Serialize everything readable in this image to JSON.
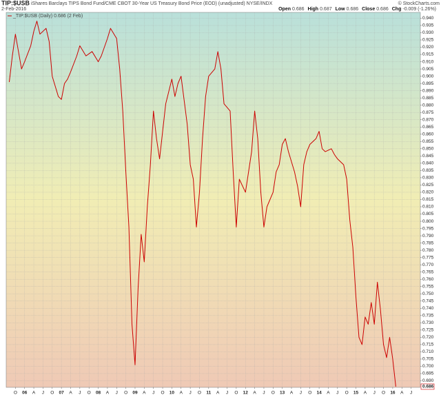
{
  "chart_data": {
    "type": "line",
    "title": "TIP:$USB",
    "subtitle": "iShares Barclays TIPS Bond Fund/CME CBOT 30-Year US Treasury Bond Price (EOD) (unadjusted) NYSE/INDX",
    "credit": "© StockCharts.com",
    "date": "2-Feb-2016",
    "ohlc": [
      {
        "label": "Open",
        "value": 0.686
      },
      {
        "label": "High",
        "value": 0.687
      },
      {
        "label": "Low",
        "value": 0.686
      },
      {
        "label": "Close",
        "value": 0.686
      },
      {
        "label": "Chg",
        "value": "-0.009 (-1.26%)"
      }
    ],
    "last_label": "0.686",
    "grid": true,
    "x": [
      "2005-08",
      "2005-09",
      "2005-10",
      "2005-12",
      "2006-01",
      "2006-03",
      "2006-04",
      "2006-05",
      "2006-06",
      "2006-08",
      "2006-09",
      "2006-10",
      "2006-12",
      "2007-01",
      "2007-02",
      "2007-03",
      "2007-04",
      "2007-06",
      "2007-07",
      "2007-09",
      "2007-11",
      "2008-01",
      "2008-02",
      "2008-04",
      "2008-05",
      "2008-07",
      "2008-08",
      "2008-09",
      "2008-10",
      "2008-11",
      "2008-12",
      "2009-01",
      "2009-02",
      "2009-03",
      "2009-04",
      "2009-05",
      "2009-06",
      "2009-07",
      "2009-08",
      "2009-09",
      "2009-10",
      "2009-11",
      "2010-01",
      "2010-02",
      "2010-03",
      "2010-04",
      "2010-06",
      "2010-07",
      "2010-08",
      "2010-09",
      "2010-10",
      "2010-11",
      "2010-12",
      "2011-01",
      "2011-03",
      "2011-04",
      "2011-05",
      "2011-06",
      "2011-08",
      "2011-09",
      "2011-10",
      "2011-11",
      "2012-01",
      "2012-02",
      "2012-03",
      "2012-04",
      "2012-05",
      "2012-06",
      "2012-07",
      "2012-08",
      "2012-10",
      "2012-11",
      "2012-12",
      "2013-01",
      "2013-02",
      "2013-03",
      "2013-05",
      "2013-06",
      "2013-07",
      "2013-08",
      "2013-09",
      "2013-10",
      "2013-12",
      "2014-01",
      "2014-02",
      "2014-03",
      "2014-05",
      "2014-06",
      "2014-07",
      "2014-09",
      "2014-10",
      "2014-11",
      "2014-12",
      "2015-01",
      "2015-02",
      "2015-03",
      "2015-04",
      "2015-05",
      "2015-06",
      "2015-07",
      "2015-08",
      "2015-09",
      "2015-10",
      "2015-11",
      "2015-12",
      "2016-01",
      "2016-02"
    ],
    "series": [
      {
        "name": "_TIP:$USB (Daily) 0.686 (2 Feb)",
        "color": "#cc0000",
        "values": [
          0.896,
          0.914,
          0.929,
          0.905,
          0.91,
          0.921,
          0.931,
          0.938,
          0.929,
          0.933,
          0.924,
          0.9,
          0.886,
          0.884,
          0.895,
          0.898,
          0.903,
          0.914,
          0.921,
          0.914,
          0.917,
          0.91,
          0.914,
          0.926,
          0.933,
          0.926,
          0.905,
          0.876,
          0.834,
          0.796,
          0.729,
          0.701,
          0.754,
          0.791,
          0.772,
          0.81,
          0.839,
          0.876,
          0.857,
          0.843,
          0.862,
          0.881,
          0.898,
          0.886,
          0.895,
          0.9,
          0.867,
          0.839,
          0.829,
          0.796,
          0.82,
          0.857,
          0.886,
          0.9,
          0.905,
          0.917,
          0.905,
          0.881,
          0.876,
          0.834,
          0.796,
          0.829,
          0.82,
          0.834,
          0.848,
          0.876,
          0.857,
          0.82,
          0.796,
          0.81,
          0.82,
          0.834,
          0.839,
          0.853,
          0.857,
          0.848,
          0.834,
          0.824,
          0.81,
          0.839,
          0.848,
          0.853,
          0.857,
          0.862,
          0.85,
          0.848,
          0.85,
          0.846,
          0.843,
          0.839,
          0.829,
          0.801,
          0.782,
          0.748,
          0.72,
          0.715,
          0.734,
          0.729,
          0.744,
          0.729,
          0.758,
          0.739,
          0.715,
          0.706,
          0.72,
          0.705,
          0.686
        ]
      }
    ],
    "xlim": [
      "2005-07",
      "2016-10"
    ],
    "xticks": [
      {
        "value": "2005-10",
        "label": "O"
      },
      {
        "value": "2006-01",
        "label": "06"
      },
      {
        "value": "2006-04",
        "label": "A"
      },
      {
        "value": "2006-07",
        "label": "J"
      },
      {
        "value": "2006-10",
        "label": "O"
      },
      {
        "value": "2007-01",
        "label": "07"
      },
      {
        "value": "2007-04",
        "label": "A"
      },
      {
        "value": "2007-07",
        "label": "J"
      },
      {
        "value": "2007-10",
        "label": "O"
      },
      {
        "value": "2008-01",
        "label": "08"
      },
      {
        "value": "2008-04",
        "label": "A"
      },
      {
        "value": "2008-07",
        "label": "J"
      },
      {
        "value": "2008-10",
        "label": "O"
      },
      {
        "value": "2009-01",
        "label": "09"
      },
      {
        "value": "2009-04",
        "label": "A"
      },
      {
        "value": "2009-07",
        "label": "J"
      },
      {
        "value": "2009-10",
        "label": "O"
      },
      {
        "value": "2010-01",
        "label": "10"
      },
      {
        "value": "2010-04",
        "label": "A"
      },
      {
        "value": "2010-07",
        "label": "J"
      },
      {
        "value": "2010-10",
        "label": "O"
      },
      {
        "value": "2011-01",
        "label": "11"
      },
      {
        "value": "2011-04",
        "label": "A"
      },
      {
        "value": "2011-07",
        "label": "J"
      },
      {
        "value": "2011-10",
        "label": "O"
      },
      {
        "value": "2012-01",
        "label": "12"
      },
      {
        "value": "2012-04",
        "label": "A"
      },
      {
        "value": "2012-07",
        "label": "J"
      },
      {
        "value": "2012-10",
        "label": "O"
      },
      {
        "value": "2013-01",
        "label": "13"
      },
      {
        "value": "2013-04",
        "label": "A"
      },
      {
        "value": "2013-07",
        "label": "J"
      },
      {
        "value": "2013-10",
        "label": "O"
      },
      {
        "value": "2014-01",
        "label": "14"
      },
      {
        "value": "2014-04",
        "label": "A"
      },
      {
        "value": "2014-07",
        "label": "J"
      },
      {
        "value": "2014-10",
        "label": "O"
      },
      {
        "value": "2015-01",
        "label": "15"
      },
      {
        "value": "2015-04",
        "label": "A"
      },
      {
        "value": "2015-07",
        "label": "J"
      },
      {
        "value": "2015-10",
        "label": "O"
      },
      {
        "value": "2016-01",
        "label": "16"
      },
      {
        "value": "2016-04",
        "label": "A"
      },
      {
        "value": "2016-07",
        "label": "J"
      }
    ],
    "ylim": [
      0.6855,
      0.944
    ],
    "yticks": [
      {
        "value": 0.69,
        "label": "0.690"
      },
      {
        "value": 0.695,
        "label": "0.695"
      },
      {
        "value": 0.7,
        "label": "0.700"
      },
      {
        "value": 0.705,
        "label": "0.705"
      },
      {
        "value": 0.71,
        "label": "0.710"
      },
      {
        "value": 0.715,
        "label": "0.715"
      },
      {
        "value": 0.72,
        "label": "0.720"
      },
      {
        "value": 0.725,
        "label": "0.725"
      },
      {
        "value": 0.73,
        "label": "0.730"
      },
      {
        "value": 0.735,
        "label": "0.735"
      },
      {
        "value": 0.74,
        "label": "0.740"
      },
      {
        "value": 0.745,
        "label": "0.745"
      },
      {
        "value": 0.75,
        "label": "0.750"
      },
      {
        "value": 0.755,
        "label": "0.755"
      },
      {
        "value": 0.76,
        "label": "0.760"
      },
      {
        "value": 0.765,
        "label": "0.765"
      },
      {
        "value": 0.77,
        "label": "0.770"
      },
      {
        "value": 0.775,
        "label": "0.775"
      },
      {
        "value": 0.78,
        "label": "0.780"
      },
      {
        "value": 0.785,
        "label": "0.785"
      },
      {
        "value": 0.79,
        "label": "0.790"
      },
      {
        "value": 0.795,
        "label": "0.795"
      },
      {
        "value": 0.8,
        "label": "0.800"
      },
      {
        "value": 0.805,
        "label": "0.805"
      },
      {
        "value": 0.81,
        "label": "0.810"
      },
      {
        "value": 0.815,
        "label": "0.815"
      },
      {
        "value": 0.82,
        "label": "0.820"
      },
      {
        "value": 0.825,
        "label": "0.825"
      },
      {
        "value": 0.83,
        "label": "0.830"
      },
      {
        "value": 0.835,
        "label": "0.835"
      },
      {
        "value": 0.84,
        "label": "0.840"
      },
      {
        "value": 0.845,
        "label": "0.845"
      },
      {
        "value": 0.85,
        "label": "0.850"
      },
      {
        "value": 0.855,
        "label": "0.855"
      },
      {
        "value": 0.86,
        "label": "0.860"
      },
      {
        "value": 0.865,
        "label": "0.865"
      },
      {
        "value": 0.87,
        "label": "0.870"
      },
      {
        "value": 0.875,
        "label": "0.875"
      },
      {
        "value": 0.88,
        "label": "0.880"
      },
      {
        "value": 0.885,
        "label": "0.885"
      },
      {
        "value": 0.89,
        "label": "0.890"
      },
      {
        "value": 0.895,
        "label": "0.895"
      },
      {
        "value": 0.9,
        "label": "0.900"
      },
      {
        "value": 0.905,
        "label": "0.905"
      },
      {
        "value": 0.91,
        "label": "0.910"
      },
      {
        "value": 0.915,
        "label": "0.915"
      },
      {
        "value": 0.92,
        "label": "0.920"
      },
      {
        "value": 0.925,
        "label": "0.925"
      },
      {
        "value": 0.93,
        "label": "0.930"
      },
      {
        "value": 0.935,
        "label": "0.935"
      },
      {
        "value": 0.94,
        "label": "0.940"
      }
    ]
  }
}
